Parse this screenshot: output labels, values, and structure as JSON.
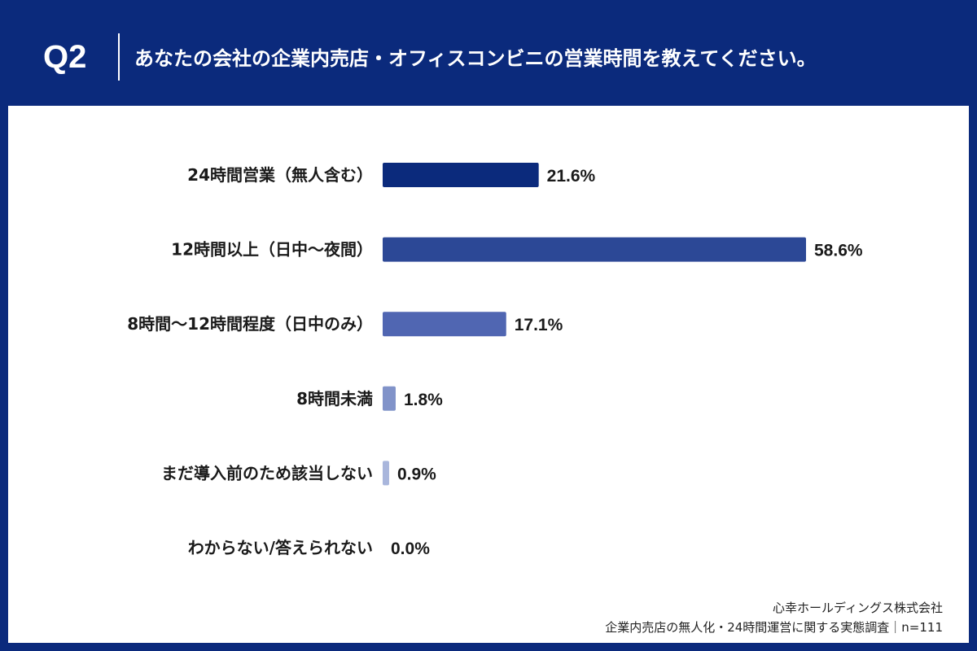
{
  "header": {
    "q_number": "Q2",
    "question": "あなたの会社の企業内売店・オフィスコンビニの営業時間を教えてください。"
  },
  "chart_data": {
    "type": "bar",
    "orientation": "horizontal",
    "categories": [
      "24時間営業（無人含む）",
      "12時間以上（日中〜夜間）",
      "8時間〜12時間程度（日中のみ）",
      "8時間未満",
      "まだ導入前のため該当しない",
      "わからない/答えられない"
    ],
    "values": [
      21.6,
      58.6,
      17.1,
      1.8,
      0.9,
      0.0
    ],
    "value_labels": [
      "21.6%",
      "58.6%",
      "17.1%",
      "1.8%",
      "0.9%",
      "0.0%"
    ],
    "bar_colors": [
      "#0b2a7c",
      "#2c4896",
      "#5066b2",
      "#8193c9",
      "#a9b6dc",
      "#c9d1ea"
    ],
    "grid": false,
    "legend": "none"
  },
  "footer": {
    "company": "心幸ホールディングス株式会社",
    "survey": "企業内売店の無人化・24時間運営に関する実態調査｜n=111"
  }
}
